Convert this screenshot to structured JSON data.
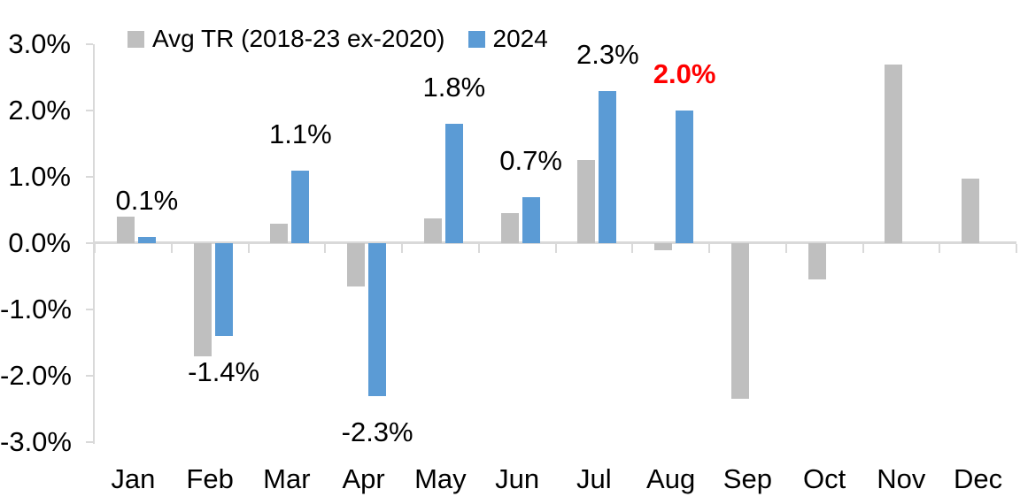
{
  "chart_data": {
    "type": "bar",
    "title": "",
    "xlabel": "",
    "ylabel": "",
    "categories": [
      "Jan",
      "Feb",
      "Mar",
      "Apr",
      "May",
      "Jun",
      "Jul",
      "Aug",
      "Sep",
      "Oct",
      "Nov",
      "Dec"
    ],
    "series": [
      {
        "name": "Avg TR (2018-23 ex-2020)",
        "color": "#BFBFBF",
        "values": [
          0.4,
          -1.7,
          0.3,
          -0.65,
          0.37,
          0.45,
          1.25,
          -0.1,
          -2.35,
          -0.55,
          2.7,
          0.97
        ]
      },
      {
        "name": "2024",
        "color": "#5B9BD5",
        "values": [
          0.1,
          -1.4,
          1.1,
          -2.3,
          1.8,
          0.7,
          2.3,
          2.0,
          null,
          null,
          null,
          null
        ],
        "data_labels": [
          "0.1%",
          "-1.4%",
          "1.1%",
          "-2.3%",
          "1.8%",
          "0.7%",
          "2.3%",
          "2.0%"
        ],
        "label_colors": [
          "#000000",
          "#000000",
          "#000000",
          "#000000",
          "#000000",
          "#000000",
          "#000000",
          "#FF0000"
        ],
        "label_bold": [
          false,
          false,
          false,
          false,
          false,
          false,
          false,
          true
        ]
      }
    ],
    "ylim": [
      -3,
      3
    ],
    "ytick_labels": [
      "3.0%",
      "2.0%",
      "1.0%",
      "0.0%",
      "-1.0%",
      "-2.0%",
      "-3.0%"
    ],
    "axis_color": "#D9D9D9",
    "text_color": "#000000",
    "highlight_color": "#FF0000",
    "legend_position": "top",
    "grid": "none"
  }
}
